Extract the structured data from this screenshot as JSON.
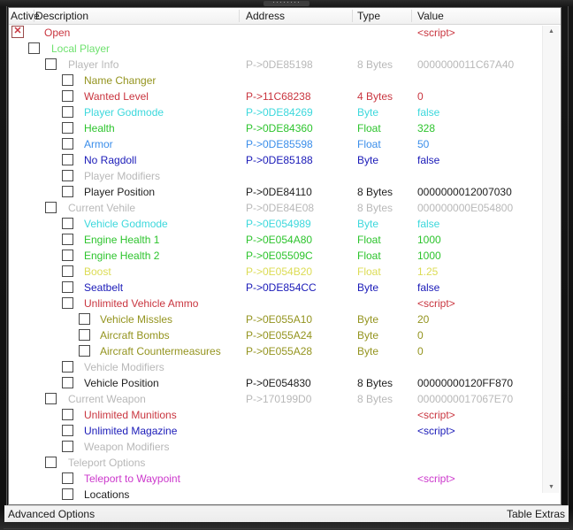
{
  "window": {
    "grip_dots": "········"
  },
  "header": {
    "columns": [
      "Active",
      "Description",
      "Address",
      "Type",
      "Value"
    ]
  },
  "icons": {
    "checked_x": "✕",
    "scroll_up": "▲",
    "scroll_down": "▼"
  },
  "colors": {
    "red": "#c9353f",
    "green_light": "#6fe26f",
    "green": "#2dc42d",
    "gray": "#b8b8b8",
    "olive": "#94941f",
    "cyan": "#3cd8dc",
    "blue": "#3b8eea",
    "navy": "#1a1ab8",
    "black": "#1e1e1e",
    "yellow": "#dcdc55",
    "magenta": "#cc38cc"
  },
  "rows": [
    {
      "desc": "Open",
      "address": "",
      "type": "",
      "value": "<script>",
      "color": "red",
      "level": 0,
      "checked": true
    },
    {
      "desc": "Local Player",
      "address": "",
      "type": "",
      "value": "",
      "color": "green_light",
      "level": 1,
      "checked": false
    },
    {
      "desc": "Player Info",
      "address": "P->0DE85198",
      "type": "8 Bytes",
      "value": "0000000011C67A40",
      "color": "gray",
      "level": 2,
      "checked": false
    },
    {
      "desc": "Name Changer",
      "address": "",
      "type": "",
      "value": "",
      "color": "olive",
      "level": 3,
      "checked": false
    },
    {
      "desc": "Wanted Level",
      "address": "P->11C68238",
      "type": "4 Bytes",
      "value": "0",
      "color": "red",
      "level": 3,
      "checked": false
    },
    {
      "desc": "Player Godmode",
      "address": "P->0DE84269",
      "type": "Byte",
      "value": "false",
      "color": "cyan",
      "level": 3,
      "checked": false
    },
    {
      "desc": "Health",
      "address": "P->0DE84360",
      "type": "Float",
      "value": "328",
      "color": "green",
      "level": 3,
      "checked": false
    },
    {
      "desc": "Armor",
      "address": "P->0DE85598",
      "type": "Float",
      "value": "50",
      "color": "blue",
      "level": 3,
      "checked": false
    },
    {
      "desc": "No Ragdoll",
      "address": "P->0DE85188",
      "type": "Byte",
      "value": "false",
      "color": "navy",
      "level": 3,
      "checked": false
    },
    {
      "desc": "Player Modifiers",
      "address": "",
      "type": "",
      "value": "",
      "color": "gray",
      "level": 3,
      "checked": false
    },
    {
      "desc": "Player Position",
      "address": "P->0DE84110",
      "type": "8 Bytes",
      "value": "0000000012007030",
      "color": "black",
      "level": 3,
      "checked": false
    },
    {
      "desc": "Current Vehile",
      "address": "P->0DE84E08",
      "type": "8 Bytes",
      "value": "000000000E054800",
      "color": "gray",
      "level": 2,
      "checked": false
    },
    {
      "desc": "Vehicle Godmode",
      "address": "P->0E054989",
      "type": "Byte",
      "value": "false",
      "color": "cyan",
      "level": 3,
      "checked": false
    },
    {
      "desc": "Engine Health 1",
      "address": "P->0E054A80",
      "type": "Float",
      "value": "1000",
      "color": "green",
      "level": 3,
      "checked": false
    },
    {
      "desc": "Engine Health 2",
      "address": "P->0E05509C",
      "type": "Float",
      "value": "1000",
      "color": "green",
      "level": 3,
      "checked": false
    },
    {
      "desc": "Boost",
      "address": "P->0E054B20",
      "type": "Float",
      "value": "1.25",
      "color": "yellow",
      "level": 3,
      "checked": false
    },
    {
      "desc": "Seatbelt",
      "address": "P->0DE854CC",
      "type": "Byte",
      "value": "false",
      "color": "navy",
      "level": 3,
      "checked": false
    },
    {
      "desc": "Unlimited Vehicle Ammo",
      "address": "",
      "type": "",
      "value": "<script>",
      "color": "red",
      "level": 3,
      "checked": false
    },
    {
      "desc": "Vehicle Missles",
      "address": "P->0E055A10",
      "type": "Byte",
      "value": "20",
      "color": "olive",
      "level": 4,
      "checked": false
    },
    {
      "desc": "Aircraft Bombs",
      "address": "P->0E055A24",
      "type": "Byte",
      "value": "0",
      "color": "olive",
      "level": 4,
      "checked": false
    },
    {
      "desc": "Aircraft Countermeasures",
      "address": "P->0E055A28",
      "type": "Byte",
      "value": "0",
      "color": "olive",
      "level": 4,
      "checked": false
    },
    {
      "desc": "Vehicle Modifiers",
      "address": "",
      "type": "",
      "value": "",
      "color": "gray",
      "level": 3,
      "checked": false
    },
    {
      "desc": "Vehicle Position",
      "address": "P->0E054830",
      "type": "8 Bytes",
      "value": "00000000120FF870",
      "color": "black",
      "level": 3,
      "checked": false
    },
    {
      "desc": "Current Weapon",
      "address": "P->170199D0",
      "type": "8 Bytes",
      "value": "0000000017067E70",
      "color": "gray",
      "level": 2,
      "checked": false
    },
    {
      "desc": "Unlimited Munitions",
      "address": "",
      "type": "",
      "value": "<script>",
      "color": "red",
      "level": 3,
      "checked": false
    },
    {
      "desc": "Unlimited Magazine",
      "address": "",
      "type": "",
      "value": "<script>",
      "color": "navy",
      "level": 3,
      "checked": false
    },
    {
      "desc": "Weapon Modifiers",
      "address": "",
      "type": "",
      "value": "",
      "color": "gray",
      "level": 3,
      "checked": false
    },
    {
      "desc": "Teleport Options",
      "address": "",
      "type": "",
      "value": "",
      "color": "gray",
      "level": 2,
      "checked": false
    },
    {
      "desc": "Teleport to Waypoint",
      "address": "",
      "type": "",
      "value": "<script>",
      "color": "magenta",
      "level": 3,
      "checked": false
    },
    {
      "desc": "Locations",
      "address": "",
      "type": "",
      "value": "",
      "color": "black",
      "level": 3,
      "checked": false
    }
  ],
  "footer": {
    "left": "Advanced Options",
    "right": "Table Extras"
  }
}
